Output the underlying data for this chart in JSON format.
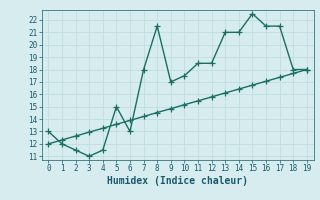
{
  "x": [
    0,
    1,
    2,
    3,
    4,
    5,
    6,
    7,
    8,
    9,
    10,
    11,
    12,
    13,
    14,
    15,
    16,
    17,
    18,
    19
  ],
  "y_curve": [
    13,
    12,
    11.5,
    11,
    11.5,
    15,
    13,
    18,
    21.5,
    17,
    17.5,
    18.5,
    18.5,
    21,
    21,
    22.5,
    21.5,
    21.5,
    18,
    18
  ],
  "y_trend": [
    12.0,
    12.32,
    12.63,
    12.95,
    13.26,
    13.58,
    13.89,
    14.21,
    14.53,
    14.84,
    15.16,
    15.47,
    15.79,
    16.11,
    16.42,
    16.74,
    17.05,
    17.37,
    17.68,
    18.0
  ],
  "line_color": "#1a6e64",
  "bg_color": "#d6ecee",
  "grid_color": "#c0dde0",
  "xlabel": "Humidex (Indice chaleur)",
  "ylim": [
    10.7,
    22.8
  ],
  "xlim": [
    -0.5,
    19.5
  ],
  "yticks": [
    11,
    12,
    13,
    14,
    15,
    16,
    17,
    18,
    19,
    20,
    21,
    22
  ],
  "xticks": [
    0,
    1,
    2,
    3,
    4,
    5,
    6,
    7,
    8,
    9,
    10,
    11,
    12,
    13,
    14,
    15,
    16,
    17,
    18,
    19
  ],
  "marker": "+",
  "markersize": 4,
  "linewidth": 1.0,
  "font_color": "#1a5a6e",
  "tick_fontsize": 5.5,
  "label_fontsize": 7
}
